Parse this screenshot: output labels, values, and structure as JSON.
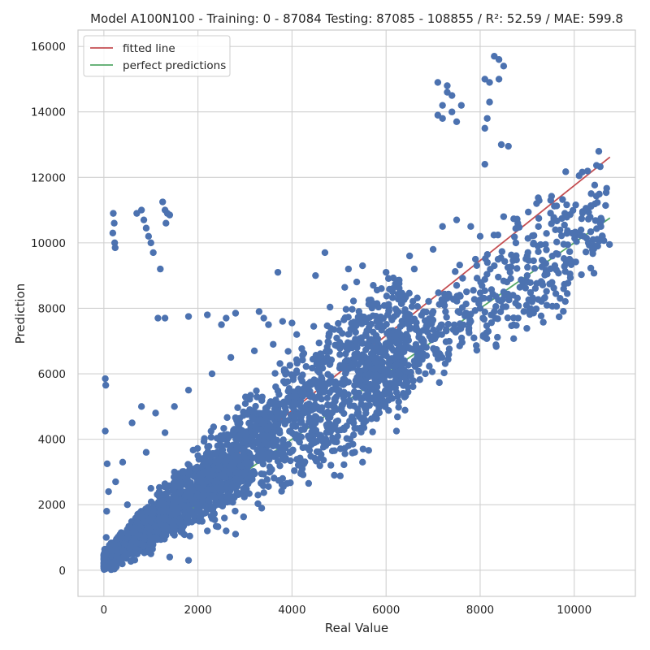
{
  "chart_data": {
    "type": "scatter",
    "title": "Model A100N100 - Training: 0 - 87084 Testing: 87085 - 108855 / R²: 52.59 / MAE: 599.8",
    "xlabel": "Real Value",
    "ylabel": "Prediction",
    "xlim": [
      -550,
      11300
    ],
    "ylim": [
      -800,
      16500
    ],
    "xticks": [
      0,
      2000,
      4000,
      6000,
      8000,
      10000
    ],
    "yticks": [
      0,
      2000,
      4000,
      6000,
      8000,
      10000,
      12000,
      14000,
      16000
    ],
    "grid": true,
    "legend_position": "top-left",
    "point_color": "#4c72b0",
    "series": [
      {
        "name": "fitted line",
        "type": "line",
        "color": "#c44e52",
        "x": [
          0,
          10760
        ],
        "y": [
          300,
          12620
        ]
      },
      {
        "name": "perfect predictions",
        "type": "line",
        "color": "#55a868",
        "x": [
          0,
          10760
        ],
        "y": [
          0,
          10760
        ]
      }
    ],
    "points": [
      [
        30,
        5850
      ],
      [
        40,
        5650
      ],
      [
        30,
        4250
      ],
      [
        70,
        3250
      ],
      [
        100,
        2400
      ],
      [
        60,
        1800
      ],
      [
        50,
        1000
      ],
      [
        40,
        500
      ],
      [
        20,
        100
      ],
      [
        200,
        10900
      ],
      [
        220,
        10600
      ],
      [
        190,
        10300
      ],
      [
        230,
        10000
      ],
      [
        240,
        9850
      ],
      [
        800,
        11000
      ],
      [
        850,
        10700
      ],
      [
        900,
        10450
      ],
      [
        950,
        10200
      ],
      [
        1000,
        10000
      ],
      [
        700,
        10900
      ],
      [
        1050,
        9700
      ],
      [
        1200,
        9200
      ],
      [
        1250,
        11250
      ],
      [
        1300,
        11000
      ],
      [
        1350,
        10900
      ],
      [
        1320,
        10600
      ],
      [
        1400,
        10850
      ],
      [
        1150,
        7700
      ],
      [
        1300,
        7700
      ],
      [
        1800,
        7750
      ],
      [
        2200,
        7800
      ],
      [
        2600,
        7700
      ],
      [
        2800,
        7850
      ],
      [
        2500,
        7500
      ],
      [
        3300,
        7900
      ],
      [
        3400,
        7700
      ],
      [
        3500,
        7500
      ],
      [
        3800,
        7600
      ],
      [
        4000,
        7550
      ],
      [
        3700,
        9100
      ],
      [
        4500,
        9000
      ],
      [
        4700,
        9700
      ],
      [
        5200,
        9200
      ],
      [
        5500,
        9300
      ],
      [
        6000,
        9100
      ],
      [
        6600,
        9200
      ],
      [
        7000,
        9800
      ],
      [
        7200,
        10500
      ],
      [
        6500,
        9600
      ],
      [
        7500,
        10700
      ],
      [
        7800,
        10500
      ],
      [
        8000,
        10200
      ],
      [
        8500,
        10800
      ],
      [
        8800,
        10600
      ],
      [
        9200,
        11200
      ],
      [
        9500,
        11300
      ],
      [
        9800,
        10900
      ],
      [
        10000,
        10300
      ],
      [
        10200,
        10200
      ],
      [
        10400,
        10100
      ],
      [
        10500,
        9900
      ],
      [
        10750,
        9950
      ],
      [
        9000,
        9000
      ],
      [
        8500,
        8500
      ],
      [
        8700,
        8400
      ],
      [
        7500,
        8700
      ],
      [
        7000,
        7900
      ],
      [
        6500,
        7800
      ],
      [
        7300,
        8400
      ],
      [
        8000,
        8000
      ],
      [
        7100,
        13900
      ],
      [
        7200,
        14200
      ],
      [
        7300,
        14600
      ],
      [
        7100,
        14900
      ],
      [
        7300,
        14800
      ],
      [
        7400,
        14500
      ],
      [
        7400,
        14000
      ],
      [
        7500,
        13700
      ],
      [
        7600,
        14200
      ],
      [
        7200,
        13800
      ],
      [
        8100,
        15000
      ],
      [
        8200,
        14900
      ],
      [
        8300,
        15700
      ],
      [
        8400,
        15600
      ],
      [
        8500,
        15400
      ],
      [
        8400,
        15000
      ],
      [
        8200,
        14300
      ],
      [
        8150,
        13800
      ],
      [
        8100,
        13500
      ],
      [
        8450,
        13000
      ],
      [
        8600,
        12950
      ],
      [
        8100,
        12400
      ],
      [
        5000,
        5500
      ],
      [
        5200,
        3800
      ],
      [
        5500,
        3300
      ],
      [
        4900,
        2900
      ],
      [
        3800,
        2800
      ],
      [
        6000,
        6000
      ],
      [
        5500,
        6500
      ],
      [
        4500,
        4500
      ],
      [
        4000,
        5000
      ],
      [
        3500,
        3500
      ],
      [
        3000,
        3000
      ],
      [
        2500,
        2500
      ],
      [
        2000,
        2000
      ],
      [
        1500,
        1500
      ],
      [
        1000,
        1000
      ],
      [
        500,
        500
      ],
      [
        3000,
        4200
      ],
      [
        2500,
        3800
      ],
      [
        2000,
        3500
      ],
      [
        1500,
        3000
      ],
      [
        1000,
        2500
      ],
      [
        500,
        2000
      ],
      [
        2800,
        1100
      ],
      [
        2600,
        1200
      ],
      [
        2200,
        1200
      ],
      [
        1800,
        300
      ],
      [
        1400,
        400
      ],
      [
        1000,
        500
      ],
      [
        600,
        300
      ],
      [
        4200,
        3000
      ],
      [
        4600,
        4000
      ],
      [
        5300,
        4600
      ],
      [
        5800,
        5100
      ],
      [
        6200,
        5800
      ],
      [
        6700,
        6300
      ],
      [
        6800,
        7000
      ],
      [
        1500,
        5000
      ],
      [
        1800,
        5500
      ],
      [
        2300,
        6000
      ],
      [
        2700,
        6500
      ],
      [
        3200,
        6700
      ],
      [
        3600,
        6900
      ],
      [
        4100,
        7200
      ],
      [
        600,
        4500
      ],
      [
        800,
        5000
      ],
      [
        1100,
        4800
      ],
      [
        1300,
        4200
      ],
      [
        900,
        3600
      ],
      [
        400,
        3300
      ],
      [
        250,
        2700
      ],
      [
        7800,
        7600
      ],
      [
        8300,
        7900
      ],
      [
        8900,
        8700
      ],
      [
        9400,
        9100
      ],
      [
        9900,
        9500
      ],
      [
        10300,
        10000
      ],
      [
        10600,
        10200
      ],
      [
        7900,
        9500
      ],
      [
        8300,
        9300
      ],
      [
        9000,
        9600
      ],
      [
        9600,
        10400
      ],
      [
        6300,
        8300
      ],
      [
        5800,
        7600
      ],
      [
        4800,
        6300
      ]
    ]
  }
}
